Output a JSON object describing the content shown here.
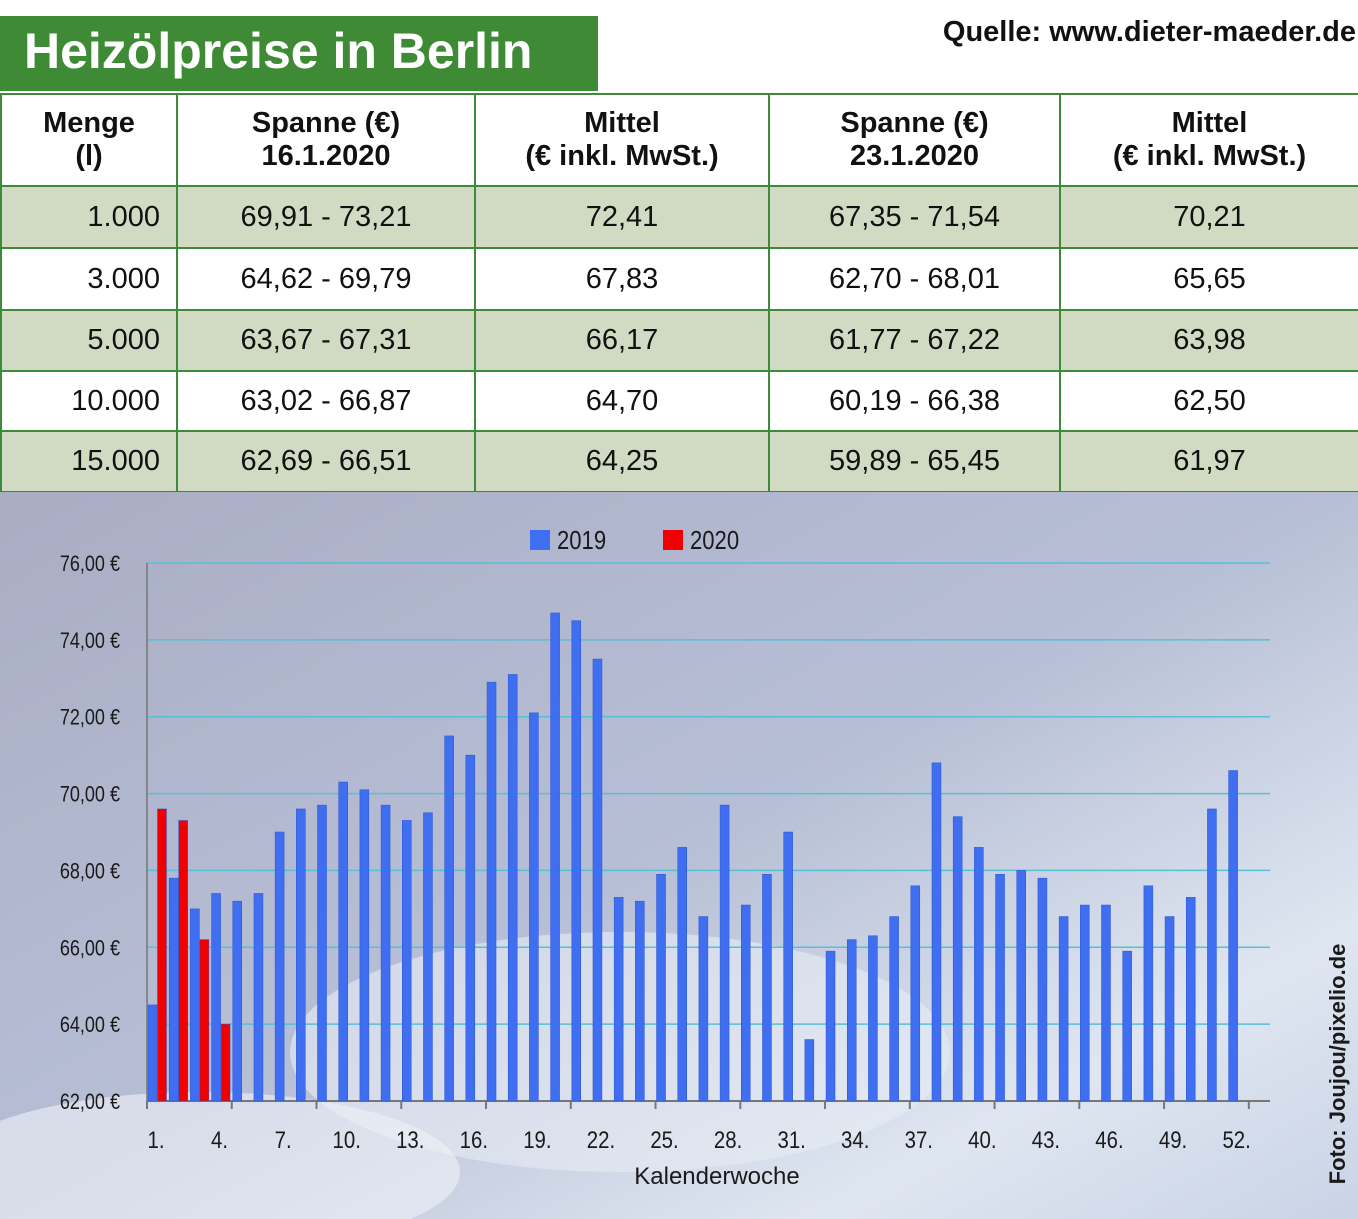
{
  "title": "Heizölpreise in Berlin",
  "source": "Quelle: www.dieter-maeder.de",
  "photo_credit": "Foto: Joujou/pixelio.de",
  "table": {
    "header": [
      [
        "Menge",
        "(l)"
      ],
      [
        "Spanne (€)",
        "16.1.2020"
      ],
      [
        "Mittel",
        "(€ inkl. MwSt.)"
      ],
      [
        "Spanne (€)",
        "23.1.2020"
      ],
      [
        "Mittel",
        "(€ inkl. MwSt.)"
      ]
    ],
    "rows": [
      [
        "1.000",
        "69,91 - 73,21",
        "72,41",
        "67,35 - 71,54",
        "70,21"
      ],
      [
        "3.000",
        "64,62 - 69,79",
        "67,83",
        "62,70 - 68,01",
        "65,65"
      ],
      [
        "5.000",
        "63,67 - 67,31",
        "66,17",
        "61,77 - 67,22",
        "63,98"
      ],
      [
        "10.000",
        "63,02 - 66,87",
        "64,70",
        "60,19 - 66,38",
        "62,50"
      ],
      [
        "15.000",
        "62,69 - 66,51",
        "64,25",
        "59,89 - 65,45",
        "61,97"
      ]
    ]
  },
  "chart_data": {
    "type": "bar",
    "x_label": "Kalenderwoche",
    "categories": [
      "1.",
      null,
      null,
      "4.",
      null,
      null,
      "7.",
      null,
      null,
      "10.",
      null,
      null,
      "13.",
      null,
      null,
      "16.",
      null,
      null,
      "19.",
      null,
      null,
      "22.",
      null,
      null,
      "25.",
      null,
      null,
      "28.",
      null,
      null,
      "31.",
      null,
      null,
      "34.",
      null,
      null,
      "37.",
      null,
      null,
      "40.",
      null,
      null,
      "43.",
      null,
      null,
      "46.",
      null,
      null,
      "49.",
      null,
      null,
      "52."
    ],
    "series": [
      {
        "name": "2019",
        "color": "#3f6ef0",
        "values": [
          64.5,
          67.8,
          67.0,
          67.4,
          67.2,
          67.4,
          69.0,
          69.6,
          69.7,
          70.3,
          70.1,
          69.7,
          69.3,
          69.5,
          71.5,
          71.0,
          72.9,
          73.1,
          72.1,
          74.7,
          74.5,
          73.5,
          67.3,
          67.2,
          67.9,
          68.6,
          66.8,
          69.7,
          67.1,
          67.9,
          69.0,
          63.6,
          65.9,
          66.2,
          66.3,
          66.8,
          67.6,
          70.8,
          69.4,
          68.6,
          67.9,
          68.0,
          67.8,
          66.8,
          67.1,
          67.1,
          65.9,
          67.6,
          66.8,
          67.3,
          69.6,
          70.6
        ]
      },
      {
        "name": "2020",
        "color": "#f00000",
        "values": [
          69.6,
          69.3,
          66.2,
          64.0,
          null,
          null,
          null,
          null,
          null,
          null,
          null,
          null,
          null,
          null,
          null,
          null,
          null,
          null,
          null,
          null,
          null,
          null,
          null,
          null,
          null,
          null,
          null,
          null,
          null,
          null,
          null,
          null,
          null,
          null,
          null,
          null,
          null,
          null,
          null,
          null,
          null,
          null,
          null,
          null,
          null,
          null,
          null,
          null,
          null,
          null,
          null,
          null
        ]
      }
    ],
    "ylim": [
      62,
      76
    ],
    "yticks": [
      {
        "value": 62,
        "label": "62,00 €"
      },
      {
        "value": 64,
        "label": "64,00 €"
      },
      {
        "value": 66,
        "label": "66,00 €"
      },
      {
        "value": 68,
        "label": "68,00 €"
      },
      {
        "value": 70,
        "label": "70,00 €"
      },
      {
        "value": 72,
        "label": "72,00 €"
      },
      {
        "value": 74,
        "label": "74,00 €"
      },
      {
        "value": 76,
        "label": "76,00 €"
      }
    ],
    "grid": true,
    "legend": "top"
  }
}
